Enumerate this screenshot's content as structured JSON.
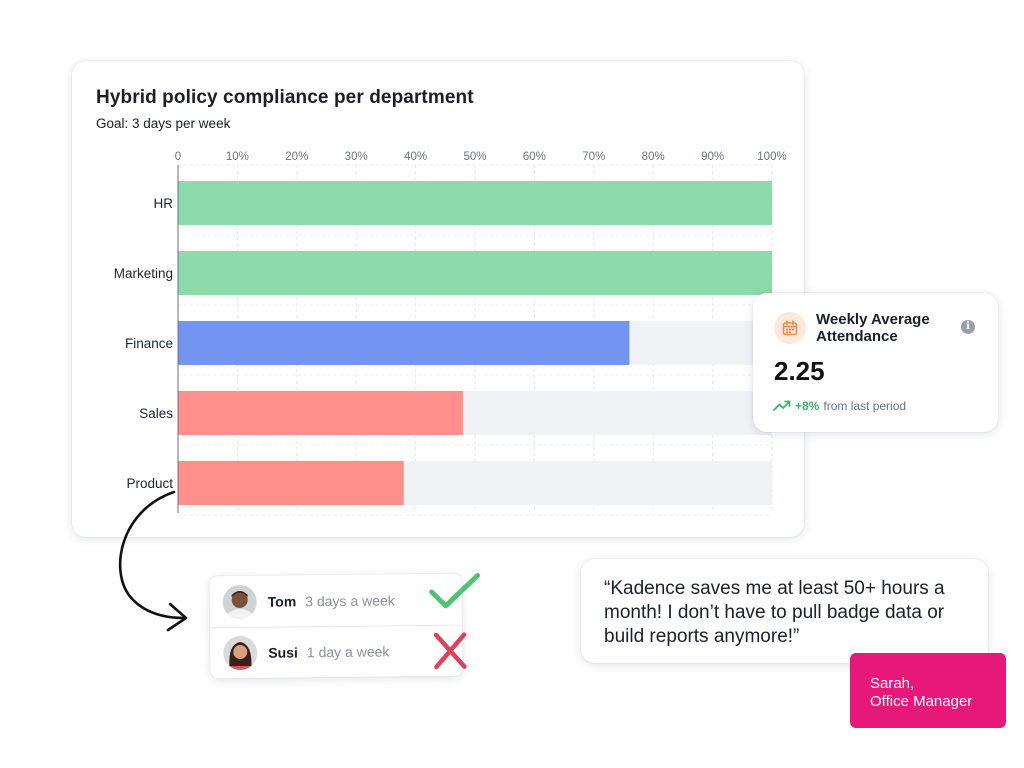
{
  "chart_data": {
    "type": "bar",
    "orientation": "horizontal",
    "title": "Hybrid policy compliance per department",
    "subtitle": "Goal: 3 days per week",
    "categories": [
      "HR",
      "Marketing",
      "Finance",
      "Sales",
      "Product"
    ],
    "values": [
      100,
      100,
      76,
      48,
      38
    ],
    "unit": "%",
    "xlim": [
      0,
      100
    ],
    "x_ticks": [
      "0",
      "10%",
      "20%",
      "30%",
      "40%",
      "50%",
      "60%",
      "70%",
      "80%",
      "90%",
      "100%"
    ],
    "bar_colors": [
      "#8ddbab",
      "#8ddbab",
      "#7295f1",
      "#ff8f8a",
      "#ff8f8a"
    ],
    "track_color": "#f0f2f6",
    "grid": true
  },
  "stat_card": {
    "title": "Weekly Average Attendance",
    "value": "2.25",
    "change": "+8%",
    "change_note": "from last period",
    "icon": "calendar-icon",
    "info_glyph": "i",
    "accent_color": "#f08a4b",
    "trend_color": "#3fb46a"
  },
  "people": [
    {
      "name": "Tom",
      "days": "3 days a week",
      "status": "check-icon",
      "status_color": "#4cc474"
    },
    {
      "name": "Susi",
      "days": "1 day a week",
      "status": "cross-icon",
      "status_color": "#e0405a"
    }
  ],
  "testimonial": {
    "quote": "“Kadence saves me at least 50+ hours a month! I don’t have to pull badge data or build reports anymore!”",
    "author_name": "Sarah,",
    "author_role": "Office Manager",
    "badge_color": "#e8177a"
  }
}
